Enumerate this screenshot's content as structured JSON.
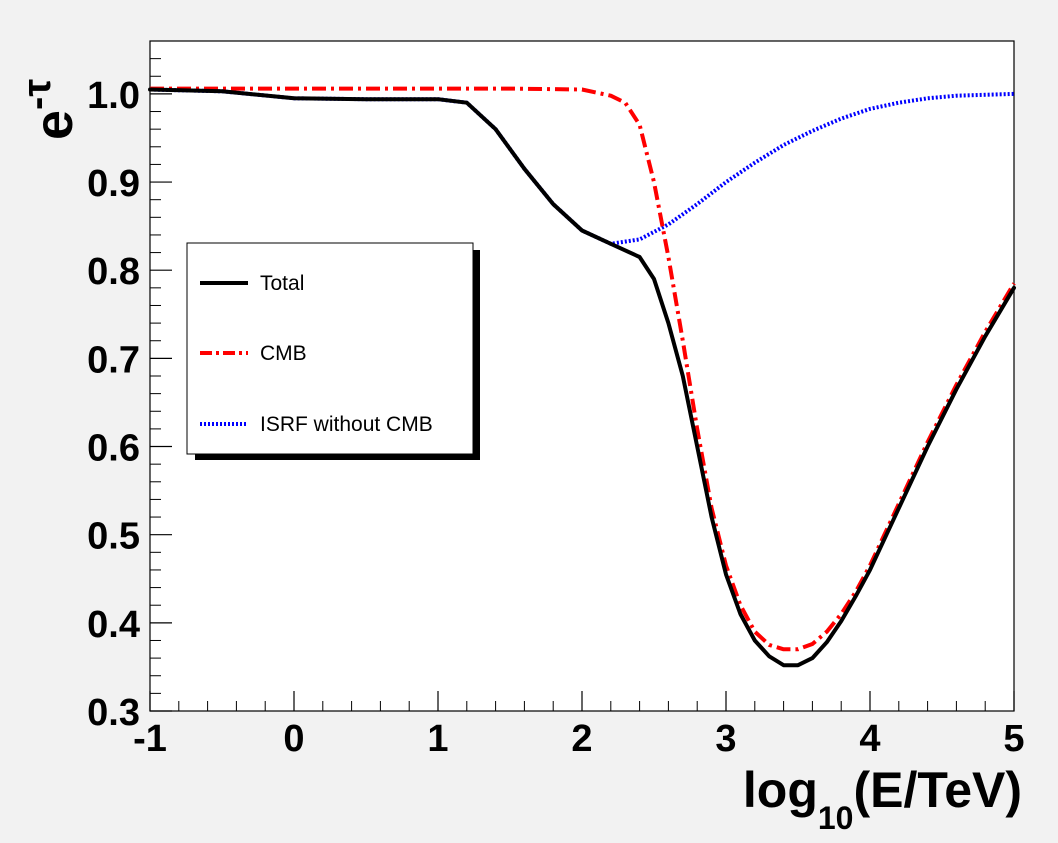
{
  "chart_data": {
    "type": "line",
    "xlabel": {
      "base": "log",
      "subscript": "10",
      "rest": "(E/TeV)"
    },
    "ylabel": {
      "base": "e",
      "superscript": "-τ"
    },
    "xlim": [
      -1,
      5
    ],
    "ylim": [
      0.3,
      1.06
    ],
    "x_ticks": [
      "-1",
      "0",
      "1",
      "2",
      "3",
      "4",
      "5"
    ],
    "y_ticks": [
      "0.3",
      "0.4",
      "0.5",
      "0.6",
      "0.7",
      "0.8",
      "0.9",
      "1.0"
    ],
    "grid": false,
    "legend_position": "left-middle",
    "series": [
      {
        "name": "Total",
        "color": "#000000",
        "style": "solid",
        "x": [
          -1,
          -0.5,
          0,
          0.5,
          1,
          1.2,
          1.4,
          1.6,
          1.8,
          2.0,
          2.2,
          2.4,
          2.5,
          2.6,
          2.7,
          2.8,
          2.9,
          3.0,
          3.1,
          3.2,
          3.3,
          3.4,
          3.5,
          3.6,
          3.7,
          3.8,
          3.9,
          4.0,
          4.2,
          4.4,
          4.6,
          4.8,
          5.0
        ],
        "y": [
          1.005,
          1.003,
          0.995,
          0.994,
          0.994,
          0.99,
          0.96,
          0.915,
          0.875,
          0.845,
          0.83,
          0.815,
          0.79,
          0.74,
          0.68,
          0.6,
          0.52,
          0.455,
          0.41,
          0.38,
          0.362,
          0.352,
          0.352,
          0.36,
          0.378,
          0.402,
          0.43,
          0.46,
          0.53,
          0.6,
          0.665,
          0.725,
          0.78
        ]
      },
      {
        "name": "CMB",
        "color": "#ff0000",
        "style": "dash-dot",
        "x": [
          -1,
          0,
          1,
          1.5,
          2.0,
          2.2,
          2.3,
          2.4,
          2.5,
          2.6,
          2.7,
          2.8,
          2.9,
          3.0,
          3.1,
          3.2,
          3.3,
          3.4,
          3.5,
          3.6,
          3.7,
          3.8,
          3.9,
          4.0,
          4.2,
          4.4,
          4.6,
          4.8,
          5.0
        ],
        "y": [
          1.006,
          1.006,
          1.006,
          1.006,
          1.005,
          0.998,
          0.99,
          0.965,
          0.9,
          0.815,
          0.72,
          0.62,
          0.53,
          0.465,
          0.42,
          0.39,
          0.375,
          0.37,
          0.37,
          0.376,
          0.39,
          0.41,
          0.435,
          0.465,
          0.535,
          0.605,
          0.67,
          0.73,
          0.785
        ]
      },
      {
        "name": "ISRF without CMB",
        "color": "#0000ff",
        "style": "dotted",
        "x": [
          -1,
          -0.5,
          0,
          0.5,
          1,
          1.2,
          1.4,
          1.6,
          1.8,
          2.0,
          2.2,
          2.4,
          2.6,
          2.8,
          3.0,
          3.2,
          3.4,
          3.6,
          3.8,
          4.0,
          4.2,
          4.4,
          4.6,
          4.8,
          5.0
        ],
        "y": [
          1.005,
          1.003,
          0.995,
          0.994,
          0.994,
          0.99,
          0.96,
          0.915,
          0.875,
          0.845,
          0.83,
          0.835,
          0.852,
          0.875,
          0.9,
          0.922,
          0.942,
          0.958,
          0.972,
          0.983,
          0.99,
          0.995,
          0.998,
          0.999,
          1.0
        ]
      }
    ]
  }
}
